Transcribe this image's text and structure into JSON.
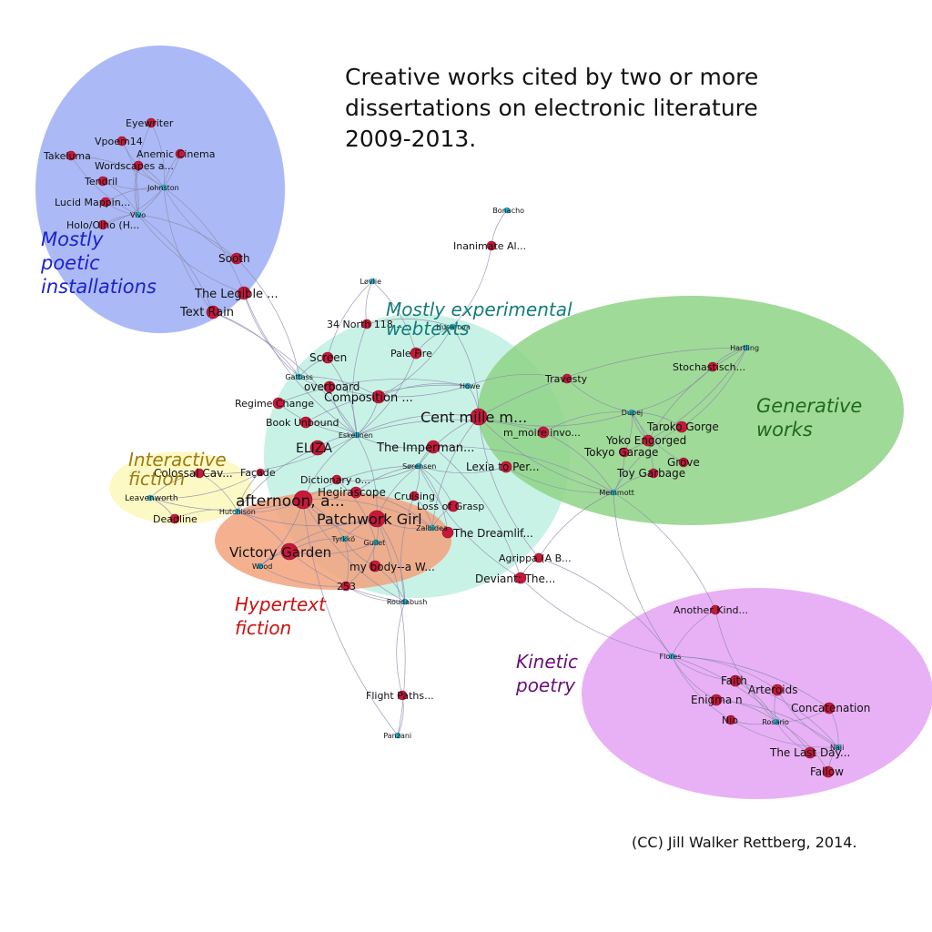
{
  "title": {
    "line1": "Creative works cited by two or more",
    "line2": "dissertations on electronic literature",
    "line3": "2009-2013."
  },
  "credit": "(CC) Jill Walker Rettberg, 2014.",
  "colors": {
    "work_node": "#c8183a",
    "author_node": "#2bb6d0",
    "edge": "#8c88ad"
  },
  "clusters": [
    {
      "id": "poetic",
      "label_lines": [
        "Mostly",
        "poetic",
        "installations"
      ],
      "fill": "#a6b6f6",
      "text_color": "#1c22cc"
    },
    {
      "id": "experimental",
      "label_lines": [
        "Mostly experimental",
        "webtexts"
      ],
      "fill": "#bff0e2",
      "text_color": "#137d7a"
    },
    {
      "id": "generative",
      "label_lines": [
        "Generative",
        "works"
      ],
      "fill": "#8fd486",
      "text_color": "#1d6a1d"
    },
    {
      "id": "interactive",
      "label_lines": [
        "Interactive",
        "fiction"
      ],
      "fill": "#fbf7b6",
      "text_color": "#a07a10"
    },
    {
      "id": "hypertext",
      "label_lines": [
        "Hypertext",
        "fiction"
      ],
      "fill": "#f3a27c",
      "text_color": "#cc1010"
    },
    {
      "id": "kinetic",
      "label_lines": [
        "Kinetic",
        "poetry"
      ],
      "fill": "#e6a8f4",
      "text_color": "#6a0f78"
    }
  ],
  "nodes": [
    {
      "id": "eyewriter",
      "label": "Eyewriter",
      "type": "work"
    },
    {
      "id": "vpoem14",
      "label": "Vpoem14",
      "type": "work"
    },
    {
      "id": "takeluma",
      "label": "Takeluma",
      "type": "work"
    },
    {
      "id": "anemic",
      "label": "Anemic Cinema",
      "type": "work"
    },
    {
      "id": "wordscapes",
      "label": "Wordscapes a...",
      "type": "work"
    },
    {
      "id": "tendril",
      "label": "Tendril",
      "type": "work"
    },
    {
      "id": "johnston",
      "label": "Johnston",
      "type": "author"
    },
    {
      "id": "lucid",
      "label": "Lucid Mappin...",
      "type": "work"
    },
    {
      "id": "vivo",
      "label": "Vivo",
      "type": "author"
    },
    {
      "id": "holo",
      "label": "Holo/Olho (H...",
      "type": "work"
    },
    {
      "id": "sooth",
      "label": "Sooth",
      "type": "work"
    },
    {
      "id": "legible",
      "label": "The Legible ...",
      "type": "work"
    },
    {
      "id": "textrain",
      "label": "Text Rain",
      "type": "work"
    },
    {
      "id": "bonacho",
      "label": "Bonacho",
      "type": "author"
    },
    {
      "id": "inanimate",
      "label": "Inanimate Al...",
      "type": "work"
    },
    {
      "id": "lovlie",
      "label": "Løvlie",
      "type": "author"
    },
    {
      "id": "north",
      "label": "34 North 118...",
      "type": "work"
    },
    {
      "id": "husarova",
      "label": "Husarova",
      "type": "author"
    },
    {
      "id": "palefire",
      "label": "Pale Fire",
      "type": "work"
    },
    {
      "id": "screen",
      "label": "Screen",
      "type": "work"
    },
    {
      "id": "gattass",
      "label": "Gattass",
      "type": "author"
    },
    {
      "id": "overboard",
      "label": "overboard",
      "type": "work"
    },
    {
      "id": "composition",
      "label": "Composition ...",
      "type": "work"
    },
    {
      "id": "regime",
      "label": "Regime Change",
      "type": "work"
    },
    {
      "id": "howe",
      "label": "Howe",
      "type": "author"
    },
    {
      "id": "bookunbound",
      "label": "Book Unbound",
      "type": "work"
    },
    {
      "id": "cent",
      "label": "Cent mille m...",
      "type": "work"
    },
    {
      "id": "eskelinen",
      "label": "Eskelinen",
      "type": "author"
    },
    {
      "id": "eliza",
      "label": "ELIZA",
      "type": "work"
    },
    {
      "id": "imperman",
      "label": "The Imperman...",
      "type": "work"
    },
    {
      "id": "moire",
      "label": "m_moire invo...",
      "type": "work"
    },
    {
      "id": "travesty",
      "label": "Travesty",
      "type": "work"
    },
    {
      "id": "hartling",
      "label": "Hartling",
      "type": "author"
    },
    {
      "id": "stochastisch",
      "label": "Stochastisch...",
      "type": "work"
    },
    {
      "id": "dupej",
      "label": "Dupej",
      "type": "author"
    },
    {
      "id": "taroko",
      "label": "Taroko Gorge",
      "type": "work"
    },
    {
      "id": "yoko",
      "label": "Yoko Engorged",
      "type": "work"
    },
    {
      "id": "tokyo",
      "label": "Tokyo Garage",
      "type": "work"
    },
    {
      "id": "grove",
      "label": "Grove",
      "type": "work"
    },
    {
      "id": "toy",
      "label": "Toy Garbage",
      "type": "work"
    },
    {
      "id": "memmott",
      "label": "Memmott",
      "type": "author"
    },
    {
      "id": "colossal",
      "label": "Colossal Cav...",
      "type": "work"
    },
    {
      "id": "facade",
      "label": "Façade",
      "type": "work"
    },
    {
      "id": "leavenworth",
      "label": "Leavenworth",
      "type": "author"
    },
    {
      "id": "deadline",
      "label": "Deadline",
      "type": "work"
    },
    {
      "id": "hutchison",
      "label": "Hutchison",
      "type": "author"
    },
    {
      "id": "sorensen",
      "label": "Sørensen",
      "type": "author"
    },
    {
      "id": "lexia",
      "label": "Lexia to Per...",
      "type": "work"
    },
    {
      "id": "dictionary",
      "label": "Dictionary o...",
      "type": "work"
    },
    {
      "id": "hegirascope",
      "label": "Hegirascope",
      "type": "work"
    },
    {
      "id": "cruising",
      "label": "Cruising",
      "type": "work"
    },
    {
      "id": "afternoon",
      "label": "afternoon, a...",
      "type": "work"
    },
    {
      "id": "lossgrasp",
      "label": "Loss of Grasp",
      "type": "work"
    },
    {
      "id": "patchwork",
      "label": "Patchwork Girl",
      "type": "work"
    },
    {
      "id": "zalbidea",
      "label": "Zalbidea",
      "type": "author"
    },
    {
      "id": "dreamlife",
      "label": "The Dreamlif...",
      "type": "work"
    },
    {
      "id": "tyrkko",
      "label": "Tyrkkö",
      "type": "author"
    },
    {
      "id": "guilet",
      "label": "Guilet",
      "type": "author"
    },
    {
      "id": "victory",
      "label": "Victory Garden",
      "type": "work"
    },
    {
      "id": "wood",
      "label": "Wood",
      "type": "author"
    },
    {
      "id": "agrippa",
      "label": "Agrippa (A B...",
      "type": "work"
    },
    {
      "id": "mybody",
      "label": "my body--a W...",
      "type": "work"
    },
    {
      "id": "n253",
      "label": "253",
      "type": "work"
    },
    {
      "id": "deviant",
      "label": "Deviant: The...",
      "type": "work"
    },
    {
      "id": "roudabush",
      "label": "Roudabush",
      "type": "author"
    },
    {
      "id": "anotherkind",
      "label": "Another Kind...",
      "type": "work"
    },
    {
      "id": "flores",
      "label": "Flores",
      "type": "author"
    },
    {
      "id": "faith",
      "label": "Faith",
      "type": "work"
    },
    {
      "id": "arteroids",
      "label": "Arteroids",
      "type": "work"
    },
    {
      "id": "enigma",
      "label": "Enigma n",
      "type": "work"
    },
    {
      "id": "concatenation",
      "label": "Concatenation",
      "type": "work"
    },
    {
      "id": "nio",
      "label": "Nio",
      "type": "work"
    },
    {
      "id": "rosario",
      "label": "Rosario",
      "type": "author"
    },
    {
      "id": "naji",
      "label": "Naji",
      "type": "author"
    },
    {
      "id": "lastday",
      "label": "The Last Day...",
      "type": "work"
    },
    {
      "id": "fallow",
      "label": "Fallow",
      "type": "work"
    },
    {
      "id": "flightpaths",
      "label": "Flight Paths...",
      "type": "work"
    },
    {
      "id": "panzani",
      "label": "Panzani",
      "type": "author"
    }
  ],
  "edges": [
    [
      "johnston",
      "eyewriter"
    ],
    [
      "johnston",
      "vpoem14"
    ],
    [
      "johnston",
      "takeluma"
    ],
    [
      "johnston",
      "anemic"
    ],
    [
      "johnston",
      "wordscapes"
    ],
    [
      "johnston",
      "tendril"
    ],
    [
      "johnston",
      "lucid"
    ],
    [
      "johnston",
      "holo"
    ],
    [
      "johnston",
      "sooth"
    ],
    [
      "johnston",
      "legible"
    ],
    [
      "johnston",
      "textrain"
    ],
    [
      "vivo",
      "eyewriter"
    ],
    [
      "vivo",
      "vpoem14"
    ],
    [
      "vivo",
      "takeluma"
    ],
    [
      "vivo",
      "anemic"
    ],
    [
      "vivo",
      "wordscapes"
    ],
    [
      "vivo",
      "tendril"
    ],
    [
      "vivo",
      "lucid"
    ],
    [
      "vivo",
      "holo"
    ],
    [
      "vivo",
      "sooth"
    ],
    [
      "vivo",
      "legible"
    ],
    [
      "vivo",
      "textrain"
    ],
    [
      "gattass",
      "textrain"
    ],
    [
      "gattass",
      "legible"
    ],
    [
      "gattass",
      "sooth"
    ],
    [
      "gattass",
      "screen"
    ],
    [
      "gattass",
      "overboard"
    ],
    [
      "gattass",
      "composition"
    ],
    [
      "eskelinen",
      "textrain"
    ],
    [
      "eskelinen",
      "legible"
    ],
    [
      "eskelinen",
      "eliza"
    ],
    [
      "eskelinen",
      "cent"
    ],
    [
      "eskelinen",
      "imperman"
    ],
    [
      "eskelinen",
      "colossal"
    ],
    [
      "eskelinen",
      "afternoon"
    ],
    [
      "eskelinen",
      "patchwork"
    ],
    [
      "eskelinen",
      "composition"
    ],
    [
      "eskelinen",
      "regime"
    ],
    [
      "eskelinen",
      "bookunbound"
    ],
    [
      "eskelinen",
      "overboard"
    ],
    [
      "eskelinen",
      "screen"
    ],
    [
      "eskelinen",
      "north"
    ],
    [
      "eskelinen",
      "palefire"
    ],
    [
      "eskelinen",
      "moire"
    ],
    [
      "bonacho",
      "inanimate"
    ],
    [
      "inanimate",
      "husarova"
    ],
    [
      "lovlie",
      "north"
    ],
    [
      "lovlie",
      "palefire"
    ],
    [
      "lovlie",
      "screen"
    ],
    [
      "husarova",
      "cent"
    ],
    [
      "husarova",
      "palefire"
    ],
    [
      "husarova",
      "composition"
    ],
    [
      "husarova",
      "north"
    ],
    [
      "howe",
      "cent"
    ],
    [
      "howe",
      "composition"
    ],
    [
      "howe",
      "overboard"
    ],
    [
      "howe",
      "regime"
    ],
    [
      "howe",
      "travesty"
    ],
    [
      "howe",
      "bookunbound"
    ],
    [
      "dupej",
      "travesty"
    ],
    [
      "dupej",
      "stochastisch"
    ],
    [
      "dupej",
      "taroko"
    ],
    [
      "dupej",
      "yoko"
    ],
    [
      "dupej",
      "tokyo"
    ],
    [
      "dupej",
      "grove"
    ],
    [
      "dupej",
      "toy"
    ],
    [
      "dupej",
      "moire"
    ],
    [
      "dupej",
      "cent"
    ],
    [
      "hartling",
      "stochastisch"
    ],
    [
      "hartling",
      "taroko"
    ],
    [
      "hartling",
      "yoko"
    ],
    [
      "hartling",
      "tokyo"
    ],
    [
      "hartling",
      "cent"
    ],
    [
      "memmott",
      "taroko"
    ],
    [
      "memmott",
      "tokyo"
    ],
    [
      "memmott",
      "toy"
    ],
    [
      "memmott",
      "moire"
    ],
    [
      "memmott",
      "cent"
    ],
    [
      "memmott",
      "imperman"
    ],
    [
      "memmott",
      "lexia"
    ],
    [
      "memmott",
      "agrippa"
    ],
    [
      "memmott",
      "anotherkind"
    ],
    [
      "memmott",
      "flores"
    ],
    [
      "sorensen",
      "imperman"
    ],
    [
      "sorensen",
      "lexia"
    ],
    [
      "sorensen",
      "dictionary"
    ],
    [
      "sorensen",
      "hegirascope"
    ],
    [
      "sorensen",
      "cruising"
    ],
    [
      "sorensen",
      "afternoon"
    ],
    [
      "sorensen",
      "lossgrasp"
    ],
    [
      "sorensen",
      "patchwork"
    ],
    [
      "sorensen",
      "dreamlife"
    ],
    [
      "sorensen",
      "deviant"
    ],
    [
      "sorensen",
      "cent"
    ],
    [
      "hutchison",
      "colossal"
    ],
    [
      "hutchison",
      "facade"
    ],
    [
      "hutchison",
      "afternoon"
    ],
    [
      "hutchison",
      "eliza"
    ],
    [
      "hutchison",
      "deadline"
    ],
    [
      "hutchison",
      "victory"
    ],
    [
      "hutchison",
      "patchwork"
    ],
    [
      "leavenworth",
      "colossal"
    ],
    [
      "leavenworth",
      "facade"
    ],
    [
      "leavenworth",
      "deadline"
    ],
    [
      "leavenworth",
      "afternoon"
    ],
    [
      "zalbidea",
      "patchwork"
    ],
    [
      "zalbidea",
      "afternoon"
    ],
    [
      "zalbidea",
      "lossgrasp"
    ],
    [
      "zalbidea",
      "cruising"
    ],
    [
      "zalbidea",
      "dreamlife"
    ],
    [
      "zalbidea",
      "hegirascope"
    ],
    [
      "zalbidea",
      "cent"
    ],
    [
      "tyrkko",
      "afternoon"
    ],
    [
      "tyrkko",
      "patchwork"
    ],
    [
      "tyrkko",
      "victory"
    ],
    [
      "tyrkko",
      "n253"
    ],
    [
      "tyrkko",
      "mybody"
    ],
    [
      "guilet",
      "afternoon"
    ],
    [
      "guilet",
      "patchwork"
    ],
    [
      "guilet",
      "victory"
    ],
    [
      "guilet",
      "mybody"
    ],
    [
      "guilet",
      "n253"
    ],
    [
      "guilet",
      "dictionary"
    ],
    [
      "wood",
      "victory"
    ],
    [
      "wood",
      "afternoon"
    ],
    [
      "wood",
      "patchwork"
    ],
    [
      "wood",
      "n253"
    ],
    [
      "roudabush",
      "afternoon"
    ],
    [
      "roudabush",
      "patchwork"
    ],
    [
      "roudabush",
      "victory"
    ],
    [
      "roudabush",
      "mybody"
    ],
    [
      "roudabush",
      "n253"
    ],
    [
      "roudabush",
      "flightpaths"
    ],
    [
      "roudabush",
      "cruising"
    ],
    [
      "panzani",
      "flightpaths"
    ],
    [
      "panzani",
      "afternoon"
    ],
    [
      "panzani",
      "patchwork"
    ],
    [
      "flores",
      "anotherkind"
    ],
    [
      "flores",
      "faith"
    ],
    [
      "flores",
      "arteroids"
    ],
    [
      "flores",
      "enigma"
    ],
    [
      "flores",
      "concatenation"
    ],
    [
      "flores",
      "nio"
    ],
    [
      "flores",
      "deviant"
    ],
    [
      "flores",
      "agrippa"
    ],
    [
      "flores",
      "lastday"
    ],
    [
      "rosario",
      "faith"
    ],
    [
      "rosario",
      "arteroids"
    ],
    [
      "rosario",
      "enigma"
    ],
    [
      "rosario",
      "nio"
    ],
    [
      "rosario",
      "concatenation"
    ],
    [
      "rosario",
      "fallow"
    ],
    [
      "rosario",
      "lastday"
    ],
    [
      "rosario",
      "anotherkind"
    ],
    [
      "naji",
      "faith"
    ],
    [
      "naji",
      "arteroids"
    ],
    [
      "naji",
      "concatenation"
    ],
    [
      "naji",
      "lastday"
    ],
    [
      "naji",
      "fallow"
    ],
    [
      "naji",
      "nio"
    ],
    [
      "naji",
      "enigma"
    ],
    [
      "deviant",
      "agrippa"
    ],
    [
      "deviant",
      "imperman"
    ],
    [
      "agrippa",
      "cent"
    ]
  ]
}
